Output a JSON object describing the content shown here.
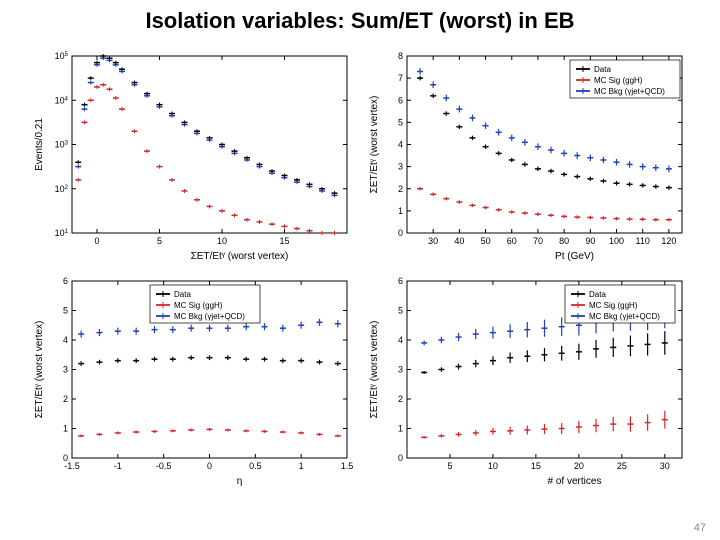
{
  "title": {
    "text": "Isolation variables:  Sum/ET (worst) in EB",
    "fontsize": 22
  },
  "page_number": 47,
  "colors": {
    "data": "#000000",
    "sig": "#d62728",
    "bkg": "#1f3fbf",
    "axis": "#000000",
    "bg": "#ffffff"
  },
  "legend_entries": [
    {
      "label": "Data",
      "color": "#000000",
      "key": "data"
    },
    {
      "label": "MC Sig (ggH)",
      "color": "#d62728",
      "key": "sig"
    },
    {
      "label": "MC Bkg (γjet+QCD)",
      "color": "#1f3fbf",
      "key": "bkg"
    }
  ],
  "panels": {
    "tl": {
      "type": "histogram_log",
      "xlabel": "ΣET/Etᵞ (worst vertex)",
      "ylabel": "Events/0.21",
      "xlim": [
        -2,
        20
      ],
      "ylim_exp": [
        1,
        5
      ],
      "xticks": [
        0,
        5,
        10,
        15
      ],
      "ytick_exp": [
        1,
        2,
        3,
        4,
        5
      ],
      "series": {
        "data": [
          [
            -1.5,
            2.6
          ],
          [
            -1,
            3.9
          ],
          [
            -0.5,
            4.5
          ],
          [
            0,
            4.85
          ],
          [
            0.5,
            5.0
          ],
          [
            1,
            4.95
          ],
          [
            1.5,
            4.85
          ],
          [
            2,
            4.7
          ],
          [
            3,
            4.4
          ],
          [
            4,
            4.15
          ],
          [
            5,
            3.9
          ],
          [
            6,
            3.7
          ],
          [
            7,
            3.5
          ],
          [
            8,
            3.3
          ],
          [
            9,
            3.15
          ],
          [
            10,
            3.0
          ],
          [
            11,
            2.85
          ],
          [
            12,
            2.7
          ],
          [
            13,
            2.55
          ],
          [
            14,
            2.4
          ],
          [
            15,
            2.3
          ],
          [
            16,
            2.2
          ],
          [
            17,
            2.1
          ],
          [
            18,
            2.0
          ],
          [
            19,
            1.9
          ]
        ],
        "bkg": [
          [
            -1.5,
            2.5
          ],
          [
            -1,
            3.8
          ],
          [
            -0.5,
            4.4
          ],
          [
            0,
            4.8
          ],
          [
            0.5,
            4.95
          ],
          [
            1,
            4.9
          ],
          [
            1.5,
            4.8
          ],
          [
            2,
            4.65
          ],
          [
            3,
            4.35
          ],
          [
            4,
            4.1
          ],
          [
            5,
            3.85
          ],
          [
            6,
            3.65
          ],
          [
            7,
            3.45
          ],
          [
            8,
            3.25
          ],
          [
            9,
            3.1
          ],
          [
            10,
            2.95
          ],
          [
            11,
            2.8
          ],
          [
            12,
            2.65
          ],
          [
            13,
            2.5
          ],
          [
            14,
            2.35
          ],
          [
            15,
            2.25
          ],
          [
            16,
            2.15
          ],
          [
            17,
            2.05
          ],
          [
            18,
            1.95
          ],
          [
            19,
            1.85
          ]
        ],
        "sig": [
          [
            -1.5,
            2.2
          ],
          [
            -1,
            3.5
          ],
          [
            -0.5,
            4.0
          ],
          [
            0,
            4.3
          ],
          [
            0.5,
            4.35
          ],
          [
            1,
            4.25
          ],
          [
            1.5,
            4.05
          ],
          [
            2,
            3.8
          ],
          [
            3,
            3.3
          ],
          [
            4,
            2.85
          ],
          [
            5,
            2.5
          ],
          [
            6,
            2.2
          ],
          [
            7,
            1.95
          ],
          [
            8,
            1.75
          ],
          [
            9,
            1.6
          ],
          [
            10,
            1.5
          ],
          [
            11,
            1.4
          ],
          [
            12,
            1.3
          ],
          [
            13,
            1.25
          ],
          [
            14,
            1.2
          ],
          [
            15,
            1.15
          ],
          [
            16,
            1.1
          ],
          [
            17,
            1.05
          ],
          [
            18,
            1.0
          ],
          [
            19,
            1.0
          ]
        ]
      }
    },
    "tr": {
      "type": "profile",
      "xlabel": "Pt (GeV)",
      "ylabel": "ΣET/Etᵞ (worst vertex)",
      "xlim": [
        20,
        125
      ],
      "ylim": [
        0,
        8
      ],
      "xticks": [
        30,
        40,
        50,
        60,
        70,
        80,
        90,
        100,
        110,
        120
      ],
      "yticks": [
        0,
        1,
        2,
        3,
        4,
        5,
        6,
        7,
        8
      ],
      "series": {
        "data": [
          [
            25,
            7.0
          ],
          [
            30,
            6.2
          ],
          [
            35,
            5.4
          ],
          [
            40,
            4.8
          ],
          [
            45,
            4.3
          ],
          [
            50,
            3.9
          ],
          [
            55,
            3.6
          ],
          [
            60,
            3.3
          ],
          [
            65,
            3.1
          ],
          [
            70,
            2.9
          ],
          [
            75,
            2.8
          ],
          [
            80,
            2.65
          ],
          [
            85,
            2.55
          ],
          [
            90,
            2.45
          ],
          [
            95,
            2.35
          ],
          [
            100,
            2.25
          ],
          [
            105,
            2.2
          ],
          [
            110,
            2.15
          ],
          [
            115,
            2.1
          ],
          [
            120,
            2.05
          ]
        ],
        "bkg": [
          [
            25,
            7.3
          ],
          [
            30,
            6.7
          ],
          [
            35,
            6.1
          ],
          [
            40,
            5.6
          ],
          [
            45,
            5.2
          ],
          [
            50,
            4.85
          ],
          [
            55,
            4.55
          ],
          [
            60,
            4.3
          ],
          [
            65,
            4.1
          ],
          [
            70,
            3.9
          ],
          [
            75,
            3.75
          ],
          [
            80,
            3.6
          ],
          [
            85,
            3.5
          ],
          [
            90,
            3.4
          ],
          [
            95,
            3.3
          ],
          [
            100,
            3.2
          ],
          [
            105,
            3.1
          ],
          [
            110,
            3.0
          ],
          [
            115,
            2.95
          ],
          [
            120,
            2.9
          ]
        ],
        "sig": [
          [
            25,
            2.0
          ],
          [
            30,
            1.75
          ],
          [
            35,
            1.55
          ],
          [
            40,
            1.4
          ],
          [
            45,
            1.25
          ],
          [
            50,
            1.15
          ],
          [
            55,
            1.05
          ],
          [
            60,
            0.95
          ],
          [
            65,
            0.9
          ],
          [
            70,
            0.85
          ],
          [
            75,
            0.8
          ],
          [
            80,
            0.75
          ],
          [
            85,
            0.72
          ],
          [
            90,
            0.7
          ],
          [
            95,
            0.68
          ],
          [
            100,
            0.65
          ],
          [
            105,
            0.63
          ],
          [
            110,
            0.62
          ],
          [
            115,
            0.6
          ],
          [
            120,
            0.6
          ]
        ]
      },
      "err": {
        "data": 0.1,
        "bkg": 0.15,
        "sig": 0.08
      }
    },
    "bl": {
      "type": "profile",
      "xlabel": "η",
      "ylabel": "ΣET/Etᵞ (worst vertex)",
      "xlim": [
        -1.5,
        1.5
      ],
      "ylim": [
        0,
        6
      ],
      "xticks": [
        -1.5,
        -1,
        -0.5,
        0,
        0.5,
        1,
        1.5
      ],
      "yticks": [
        0,
        1,
        2,
        3,
        4,
        5,
        6
      ],
      "series": {
        "data": [
          [
            -1.4,
            3.2
          ],
          [
            -1.2,
            3.25
          ],
          [
            -1.0,
            3.3
          ],
          [
            -0.8,
            3.3
          ],
          [
            -0.6,
            3.35
          ],
          [
            -0.4,
            3.35
          ],
          [
            -0.2,
            3.4
          ],
          [
            0,
            3.4
          ],
          [
            0.2,
            3.4
          ],
          [
            0.4,
            3.35
          ],
          [
            0.6,
            3.35
          ],
          [
            0.8,
            3.3
          ],
          [
            1.0,
            3.3
          ],
          [
            1.2,
            3.25
          ],
          [
            1.4,
            3.2
          ]
        ],
        "bkg": [
          [
            -1.4,
            4.2
          ],
          [
            -1.2,
            4.25
          ],
          [
            -1.0,
            4.3
          ],
          [
            -0.8,
            4.3
          ],
          [
            -0.6,
            4.35
          ],
          [
            -0.4,
            4.35
          ],
          [
            -0.2,
            4.4
          ],
          [
            0,
            4.4
          ],
          [
            0.2,
            4.4
          ],
          [
            0.4,
            4.45
          ],
          [
            0.6,
            4.45
          ],
          [
            0.8,
            4.4
          ],
          [
            1.0,
            4.5
          ],
          [
            1.2,
            4.6
          ],
          [
            1.4,
            4.55
          ]
        ],
        "sig": [
          [
            -1.4,
            0.75
          ],
          [
            -1.2,
            0.8
          ],
          [
            -1.0,
            0.85
          ],
          [
            -0.8,
            0.88
          ],
          [
            -0.6,
            0.9
          ],
          [
            -0.4,
            0.92
          ],
          [
            -0.2,
            0.95
          ],
          [
            0,
            0.97
          ],
          [
            0.2,
            0.95
          ],
          [
            0.4,
            0.92
          ],
          [
            0.6,
            0.9
          ],
          [
            0.8,
            0.88
          ],
          [
            1.0,
            0.85
          ],
          [
            1.2,
            0.8
          ],
          [
            1.4,
            0.75
          ]
        ]
      },
      "err": {
        "data": 0.08,
        "bkg": 0.12,
        "sig": 0.05
      }
    },
    "br": {
      "type": "profile",
      "xlabel": "# of vertices",
      "ylabel": "ΣET/Etᵞ (worst vertex)",
      "xlim": [
        0,
        32
      ],
      "ylim": [
        0,
        6
      ],
      "xticks": [
        5,
        10,
        15,
        20,
        25,
        30
      ],
      "yticks": [
        0,
        1,
        2,
        3,
        4,
        5,
        6
      ],
      "series": {
        "data": [
          [
            2,
            2.9
          ],
          [
            4,
            3.0
          ],
          [
            6,
            3.1
          ],
          [
            8,
            3.2
          ],
          [
            10,
            3.3
          ],
          [
            12,
            3.4
          ],
          [
            14,
            3.45
          ],
          [
            16,
            3.5
          ],
          [
            18,
            3.55
          ],
          [
            20,
            3.6
          ],
          [
            22,
            3.7
          ],
          [
            24,
            3.75
          ],
          [
            26,
            3.8
          ],
          [
            28,
            3.85
          ],
          [
            30,
            3.9
          ]
        ],
        "bkg": [
          [
            2,
            3.9
          ],
          [
            4,
            4.0
          ],
          [
            6,
            4.1
          ],
          [
            8,
            4.2
          ],
          [
            10,
            4.25
          ],
          [
            12,
            4.3
          ],
          [
            14,
            4.35
          ],
          [
            16,
            4.4
          ],
          [
            18,
            4.45
          ],
          [
            20,
            4.5
          ],
          [
            22,
            4.6
          ],
          [
            24,
            4.7
          ],
          [
            26,
            4.75
          ],
          [
            28,
            4.8
          ],
          [
            30,
            4.9
          ]
        ],
        "sig": [
          [
            2,
            0.7
          ],
          [
            4,
            0.75
          ],
          [
            6,
            0.8
          ],
          [
            8,
            0.85
          ],
          [
            10,
            0.9
          ],
          [
            12,
            0.92
          ],
          [
            14,
            0.95
          ],
          [
            16,
            0.98
          ],
          [
            18,
            1.0
          ],
          [
            20,
            1.05
          ],
          [
            22,
            1.1
          ],
          [
            24,
            1.15
          ],
          [
            26,
            1.15
          ],
          [
            28,
            1.2
          ],
          [
            30,
            1.3
          ]
        ]
      },
      "err_scale": {
        "data": [
          0.05,
          0.4
        ],
        "bkg": [
          0.08,
          0.5
        ],
        "sig": [
          0.04,
          0.3
        ]
      }
    }
  }
}
